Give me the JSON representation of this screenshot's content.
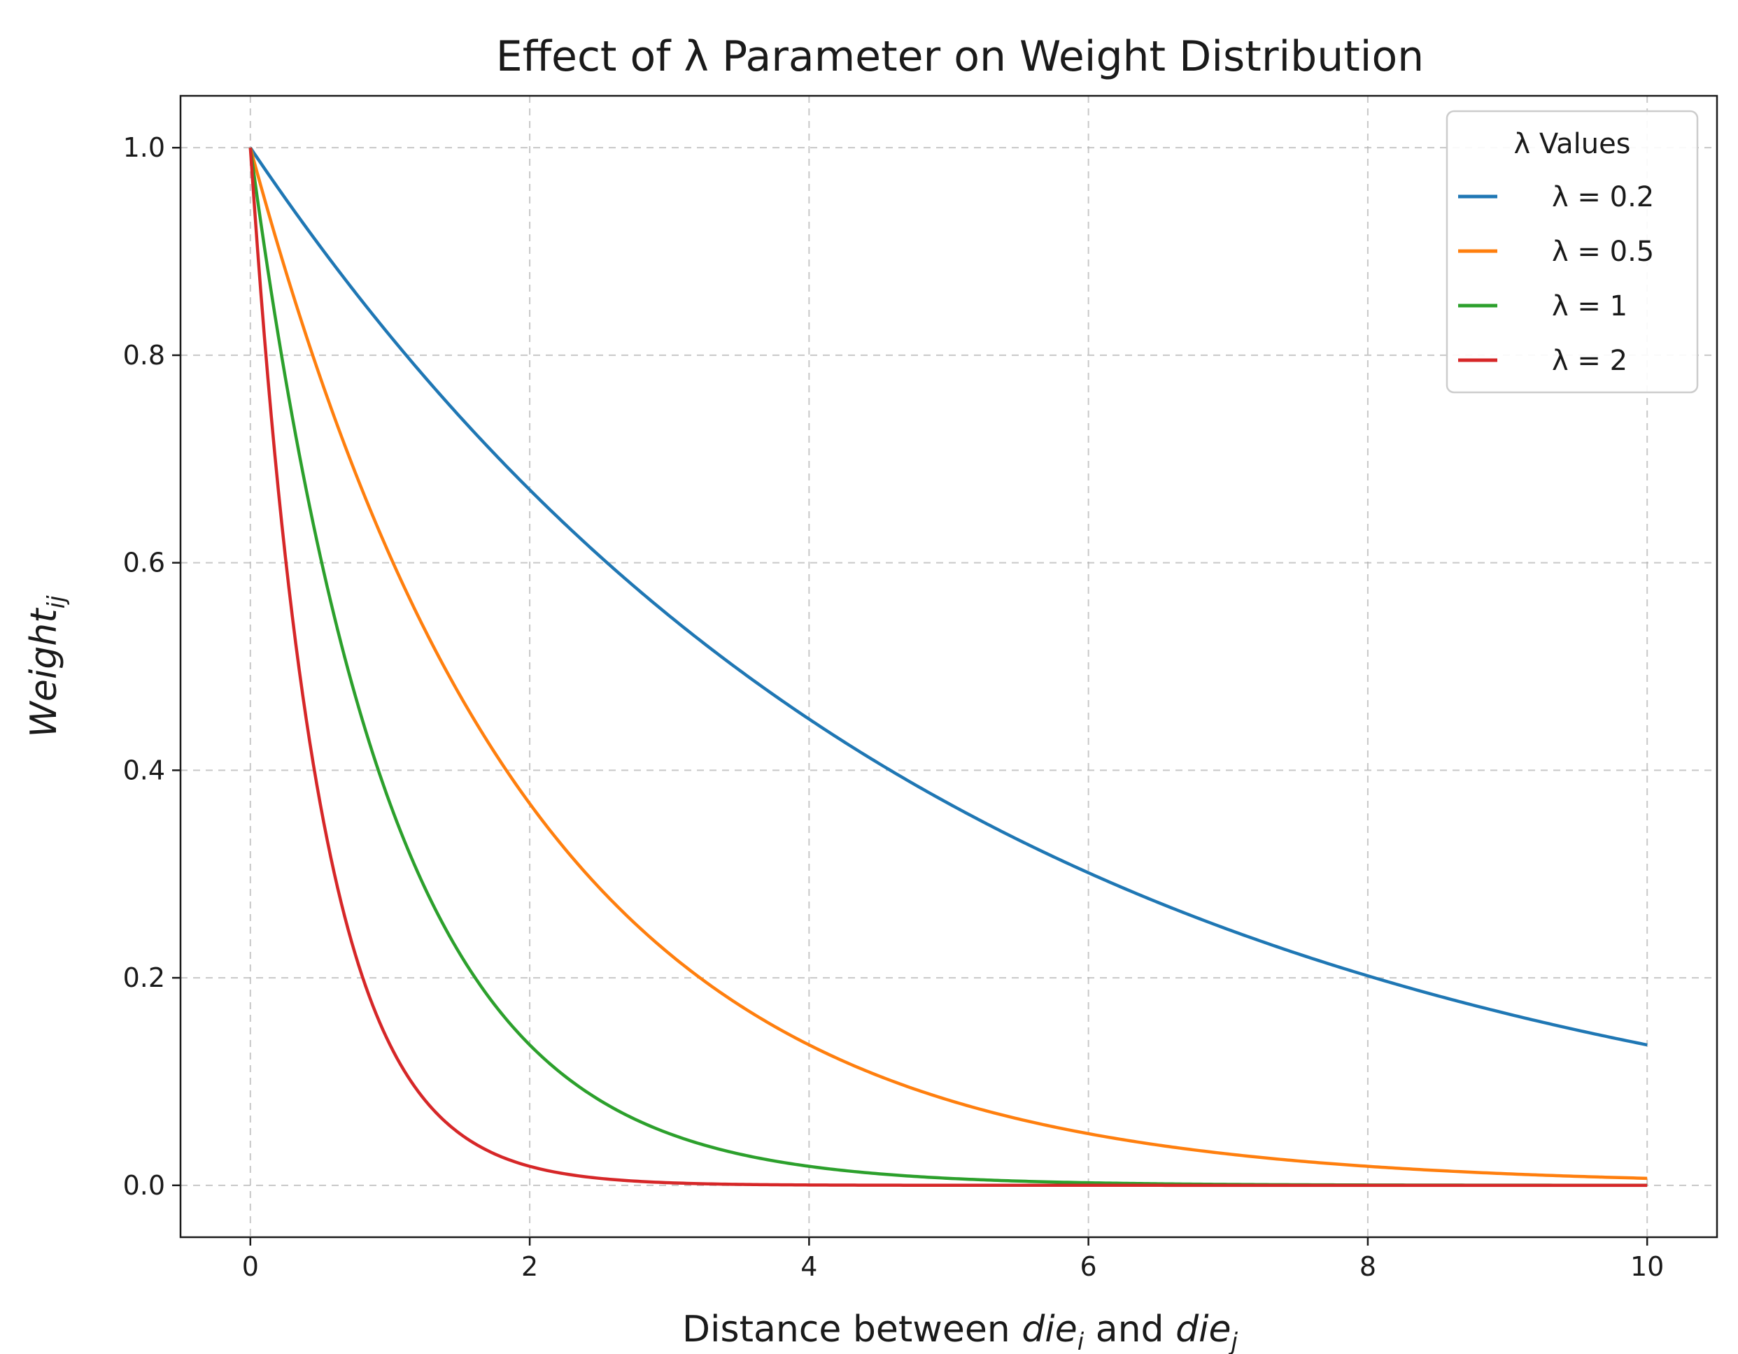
{
  "chart_data": {
    "type": "line",
    "title": "Effect of λ Parameter on Weight Distribution",
    "xlabel": {
      "prefix": "Distance between ",
      "die1": "die",
      "sub1": "i",
      "and": " and ",
      "die2": "die",
      "sub2": "j"
    },
    "ylabel": {
      "main": "Weight",
      "sub": "ij"
    },
    "xlim": [
      -0.5,
      10.5
    ],
    "ylim": [
      -0.05,
      1.05
    ],
    "xticks": [
      0,
      2,
      4,
      6,
      8,
      10
    ],
    "xtick_labels": [
      "0",
      "2",
      "4",
      "6",
      "8",
      "10"
    ],
    "yticks": [
      0.0,
      0.2,
      0.4,
      0.6,
      0.8,
      1.0
    ],
    "ytick_labels": [
      "0.0",
      "0.2",
      "0.4",
      "0.6",
      "0.8",
      "1.0"
    ],
    "grid": true,
    "legend": {
      "title": "λ Values",
      "position": "top-right"
    },
    "x": [
      0,
      0.5,
      1,
      1.5,
      2,
      2.5,
      3,
      3.5,
      4,
      4.5,
      5,
      5.5,
      6,
      6.5,
      7,
      7.5,
      8,
      8.5,
      9,
      9.5,
      10
    ],
    "series": [
      {
        "name": "λ = 0.2",
        "lambda": 0.2,
        "color": "#1f77b4",
        "values": [
          1.0,
          0.905,
          0.819,
          0.741,
          0.67,
          0.607,
          0.549,
          0.497,
          0.449,
          0.407,
          0.368,
          0.333,
          0.301,
          0.273,
          0.247,
          0.223,
          0.202,
          0.183,
          0.165,
          0.15,
          0.135
        ]
      },
      {
        "name": "λ = 0.5",
        "lambda": 0.5,
        "color": "#ff7f0e",
        "values": [
          1.0,
          0.779,
          0.607,
          0.472,
          0.368,
          0.287,
          0.223,
          0.174,
          0.135,
          0.105,
          0.082,
          0.064,
          0.05,
          0.039,
          0.03,
          0.024,
          0.018,
          0.014,
          0.011,
          0.009,
          0.007
        ]
      },
      {
        "name": "λ = 1",
        "lambda": 1,
        "color": "#2ca02c",
        "values": [
          1.0,
          0.607,
          0.368,
          0.223,
          0.135,
          0.082,
          0.05,
          0.03,
          0.018,
          0.011,
          0.007,
          0.004,
          0.002,
          0.002,
          0.001,
          0.001,
          0.0,
          0.0,
          0.0,
          0.0,
          0.0
        ]
      },
      {
        "name": "λ = 2",
        "lambda": 2,
        "color": "#d62728",
        "values": [
          1.0,
          0.368,
          0.135,
          0.05,
          0.018,
          0.007,
          0.002,
          0.001,
          0.0,
          0.0,
          0.0,
          0.0,
          0.0,
          0.0,
          0.0,
          0.0,
          0.0,
          0.0,
          0.0,
          0.0,
          0.0
        ]
      }
    ]
  }
}
